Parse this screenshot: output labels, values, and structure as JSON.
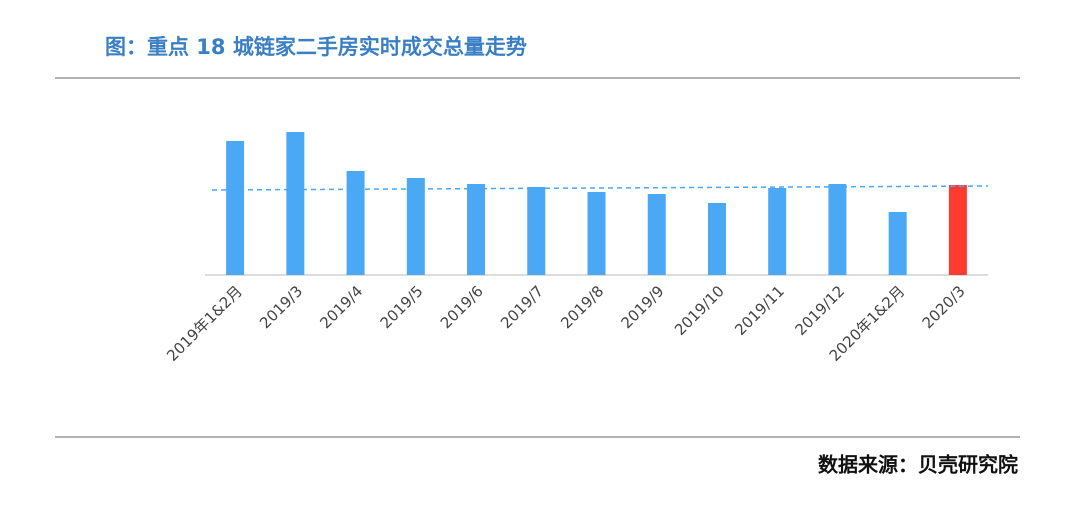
{
  "chart_data": {
    "type": "bar",
    "title": "图：重点 18 城链家二手房实时成交总量走势",
    "source": "数据来源：贝壳研究院",
    "categories": [
      "2019年1&2月",
      "2019/3",
      "2019/4",
      "2019/5",
      "2019/6",
      "2019/7",
      "2019/8",
      "2019/9",
      "2019/10",
      "2019/11",
      "2019/12",
      "2020年1&2月",
      "2020/3"
    ],
    "values": [
      134,
      143,
      104,
      97,
      91,
      88,
      83,
      81,
      72,
      87,
      91,
      63,
      90
    ],
    "colors": [
      "#4aa8f5",
      "#4aa8f5",
      "#4aa8f5",
      "#4aa8f5",
      "#4aa8f5",
      "#4aa8f5",
      "#4aa8f5",
      "#4aa8f5",
      "#4aa8f5",
      "#4aa8f5",
      "#4aa8f5",
      "#4aa8f5",
      "#ff3b30"
    ],
    "trend": [
      85,
      89
    ],
    "trend_color": "#4aa8f5",
    "ylim": [
      0,
      150
    ]
  }
}
